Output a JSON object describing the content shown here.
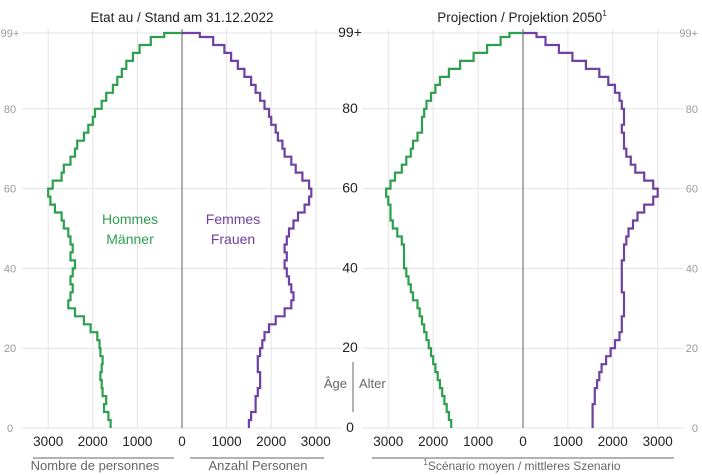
{
  "colors": {
    "men": "#2e9e4f",
    "women": "#6f42a1",
    "grid": "#e3e3e3",
    "axis": "#7a7a7a",
    "text": "#222222",
    "muted": "#666666",
    "outer_tick": "#9a9a9a"
  },
  "chart_data": [
    {
      "type": "population-pyramid",
      "title": "Etat au / Stand am 31.12.2022",
      "age_ticks": [
        {
          "value": 0,
          "label": "0"
        },
        {
          "value": 20,
          "label": "20"
        },
        {
          "value": 40,
          "label": "40"
        },
        {
          "value": 60,
          "label": "60"
        },
        {
          "value": 80,
          "label": "80"
        },
        {
          "value": 99,
          "label": "99+"
        }
      ],
      "x_ticks": [
        {
          "value": 3000,
          "label": "3000"
        },
        {
          "value": 2000,
          "label": "2000"
        },
        {
          "value": 1000,
          "label": "1000"
        },
        {
          "value": 0,
          "label": "0"
        },
        {
          "value": 1000,
          "label": "1000"
        },
        {
          "value": 2000,
          "label": "2000"
        },
        {
          "value": 3000,
          "label": "3000"
        }
      ],
      "xlabel_left": "Nombre de personnes",
      "xlabel_right": "Anzahl Personen",
      "series_labels": {
        "men": [
          "Hommes",
          "Männer"
        ],
        "women": [
          "Femmes",
          "Frauen"
        ]
      },
      "ages": [
        0,
        2,
        4,
        6,
        8,
        10,
        12,
        14,
        16,
        18,
        20,
        22,
        24,
        26,
        28,
        30,
        32,
        34,
        36,
        38,
        40,
        42,
        44,
        46,
        48,
        50,
        52,
        54,
        56,
        58,
        60,
        62,
        64,
        66,
        68,
        70,
        72,
        74,
        76,
        78,
        80,
        82,
        84,
        86,
        88,
        90,
        92,
        94,
        96,
        98,
        99
      ],
      "series": [
        {
          "name": "Hommes / Männer",
          "values": [
            1600,
            1650,
            1750,
            1700,
            1780,
            1800,
            1830,
            1800,
            1780,
            1830,
            1850,
            1900,
            2050,
            2200,
            2400,
            2550,
            2500,
            2450,
            2500,
            2450,
            2400,
            2500,
            2450,
            2500,
            2550,
            2650,
            2700,
            2850,
            2950,
            3000,
            2900,
            2700,
            2650,
            2500,
            2400,
            2350,
            2200,
            2100,
            2000,
            1950,
            1800,
            1700,
            1550,
            1450,
            1350,
            1250,
            1100,
            950,
            700,
            400,
            100
          ]
        },
        {
          "name": "Femmes / Frauen",
          "values": [
            1500,
            1550,
            1650,
            1650,
            1700,
            1750,
            1750,
            1700,
            1700,
            1750,
            1800,
            1850,
            1950,
            2100,
            2300,
            2450,
            2500,
            2450,
            2400,
            2350,
            2300,
            2350,
            2300,
            2350,
            2400,
            2500,
            2600,
            2750,
            2850,
            2900,
            2850,
            2700,
            2550,
            2450,
            2300,
            2250,
            2150,
            2100,
            2000,
            1950,
            1850,
            1750,
            1650,
            1550,
            1400,
            1250,
            1100,
            950,
            700,
            400,
            100
          ]
        }
      ]
    },
    {
      "type": "population-pyramid",
      "title": "Projection / Projektion 2050",
      "title_superscript": "1",
      "age_ticks": [
        {
          "value": 0,
          "label": "0"
        },
        {
          "value": 20,
          "label": "20"
        },
        {
          "value": 40,
          "label": "40"
        },
        {
          "value": 60,
          "label": "60"
        },
        {
          "value": 80,
          "label": "80"
        },
        {
          "value": 99,
          "label": "99+"
        }
      ],
      "x_ticks": [
        {
          "value": 3000,
          "label": "3000"
        },
        {
          "value": 2000,
          "label": "2000"
        },
        {
          "value": 1000,
          "label": "1000"
        },
        {
          "value": 0,
          "label": "0"
        },
        {
          "value": 1000,
          "label": "1000"
        },
        {
          "value": 2000,
          "label": "2000"
        },
        {
          "value": 3000,
          "label": "3000"
        }
      ],
      "age_axis_label_fr": "Âge",
      "age_axis_label_de": "Alter",
      "footnote_marker": "1",
      "footnote": "Scénario moyen / mittleres Szenario",
      "ages": [
        0,
        2,
        4,
        6,
        8,
        10,
        12,
        14,
        16,
        18,
        20,
        22,
        24,
        26,
        28,
        30,
        32,
        34,
        36,
        38,
        40,
        42,
        44,
        46,
        48,
        50,
        52,
        54,
        56,
        58,
        60,
        62,
        64,
        66,
        68,
        70,
        72,
        74,
        76,
        78,
        80,
        82,
        84,
        86,
        88,
        90,
        92,
        94,
        96,
        98,
        99
      ],
      "series": [
        {
          "name": "Hommes / Männer",
          "values": [
            1600,
            1650,
            1700,
            1750,
            1800,
            1850,
            1900,
            1950,
            2000,
            2050,
            2100,
            2150,
            2200,
            2250,
            2300,
            2350,
            2450,
            2500,
            2550,
            2600,
            2650,
            2650,
            2650,
            2700,
            2800,
            2900,
            2950,
            2950,
            3000,
            3050,
            2950,
            2850,
            2700,
            2600,
            2500,
            2450,
            2350,
            2250,
            2250,
            2200,
            2150,
            2050,
            1950,
            1850,
            1650,
            1400,
            1100,
            800,
            500,
            300,
            150
          ]
        },
        {
          "name": "Femmes / Frauen",
          "values": [
            1550,
            1550,
            1550,
            1600,
            1600,
            1650,
            1700,
            1750,
            1850,
            1950,
            2050,
            2150,
            2200,
            2200,
            2250,
            2250,
            2250,
            2200,
            2200,
            2200,
            2200,
            2250,
            2250,
            2300,
            2350,
            2450,
            2550,
            2700,
            2900,
            3000,
            2900,
            2700,
            2500,
            2400,
            2300,
            2250,
            2250,
            2200,
            2250,
            2250,
            2200,
            2150,
            2050,
            1900,
            1700,
            1400,
            1100,
            800,
            500,
            300,
            200
          ]
        }
      ]
    }
  ]
}
